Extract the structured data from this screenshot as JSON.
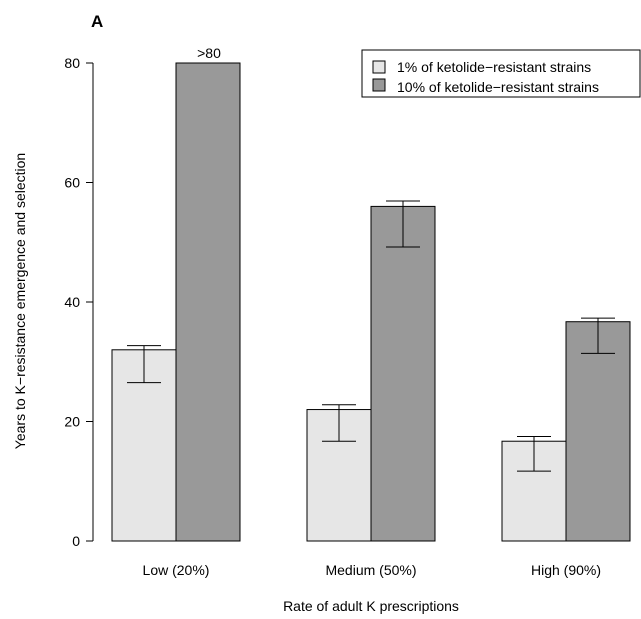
{
  "chart_data": {
    "type": "bar",
    "panel_label": "A",
    "xlabel": "Rate of adult K prescriptions",
    "ylabel": "Years to K−resistance emergence and selection",
    "categories": [
      "Low (20%)",
      "Medium (50%)",
      "High (90%)"
    ],
    "ylim": [
      0,
      80
    ],
    "yticks": [
      0,
      20,
      40,
      60,
      80
    ],
    "grid": false,
    "legend_position": "top-right",
    "series": [
      {
        "name": "1% of ketolide−resistant strains",
        "color": "#e6e6e6",
        "values": [
          32,
          22,
          16.7
        ],
        "err_low": [
          26.5,
          16.7,
          11.7
        ],
        "err_high": [
          32.7,
          22.8,
          17.5
        ]
      },
      {
        "name": "10% of ketolide−resistant strains",
        "color": "#999999",
        "values": [
          80,
          56,
          36.7
        ],
        "err_low": [
          null,
          49.2,
          31.4
        ],
        "err_high": [
          null,
          56.9,
          37.3
        ]
      }
    ],
    "annotations": [
      {
        "text": ">80",
        "category": 0,
        "series": 1
      }
    ]
  }
}
